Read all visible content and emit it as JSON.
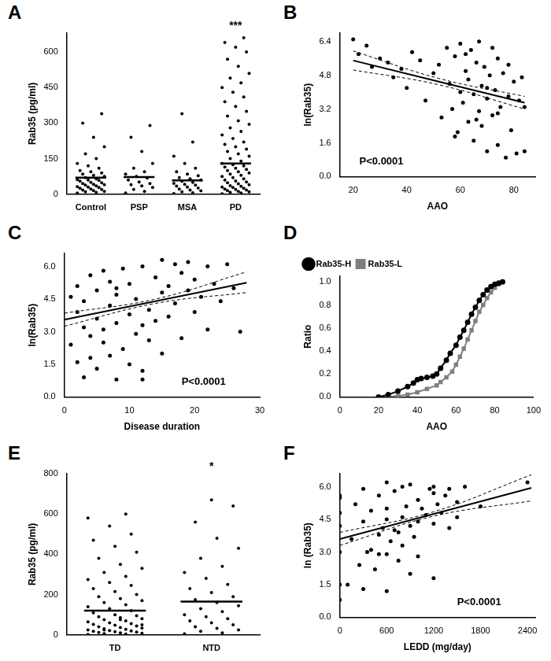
{
  "chart_data": [
    {
      "panel": "A",
      "type": "dot",
      "y_label": "Rab35 (pg/ml)",
      "color": "#000000",
      "grid": false,
      "ylim": [
        0,
        680
      ],
      "yticks": [
        0,
        150,
        300,
        450,
        600
      ],
      "groups": [
        {
          "name": "Control",
          "mean": 70,
          "values": [
            5,
            8,
            10,
            12,
            15,
            18,
            20,
            22,
            25,
            28,
            30,
            32,
            35,
            38,
            40,
            42,
            45,
            48,
            50,
            55,
            58,
            60,
            62,
            65,
            70,
            75,
            80,
            85,
            90,
            95,
            100,
            110,
            120,
            130,
            150,
            170,
            200,
            240,
            300,
            340
          ]
        },
        {
          "name": "PSP",
          "mean": 72,
          "values": [
            5,
            12,
            20,
            28,
            35,
            40,
            45,
            52,
            60,
            68,
            75,
            85,
            95,
            110,
            130,
            180,
            240,
            290
          ]
        },
        {
          "name": "MSA",
          "mean": 58,
          "values": [
            3,
            6,
            10,
            14,
            18,
            22,
            26,
            30,
            34,
            38,
            42,
            46,
            50,
            55,
            60,
            65,
            70,
            78,
            85,
            95,
            110,
            130,
            160,
            220,
            340
          ]
        },
        {
          "name": "PD",
          "mean": 130,
          "annotation": "***",
          "values": [
            2,
            5,
            8,
            10,
            12,
            15,
            18,
            20,
            22,
            25,
            28,
            30,
            33,
            36,
            40,
            44,
            48,
            52,
            56,
            60,
            65,
            70,
            75,
            80,
            85,
            90,
            95,
            100,
            105,
            110,
            115,
            120,
            125,
            130,
            140,
            150,
            160,
            170,
            180,
            190,
            200,
            210,
            220,
            235,
            250,
            265,
            280,
            295,
            310,
            330,
            350,
            370,
            390,
            410,
            430,
            450,
            470,
            490,
            510,
            540,
            570,
            600,
            620,
            640,
            660
          ]
        }
      ]
    },
    {
      "panel": "B",
      "type": "scatter",
      "x_label": "AAO",
      "y_label": "ln(Rab35)",
      "color": "#000000",
      "grid": false,
      "xlim": [
        15,
        88
      ],
      "xticks": [
        20,
        40,
        60,
        80
      ],
      "ylim": [
        0,
        6.8
      ],
      "yticks": [
        {
          "value": 0,
          "label": "0.0"
        },
        1.6,
        3.2,
        4.8,
        6.4
      ],
      "x": [
        20,
        22,
        25,
        27,
        30,
        33,
        35,
        38,
        40,
        42,
        45,
        47,
        50,
        52,
        53,
        55,
        56,
        57,
        58,
        59,
        60,
        60,
        61,
        62,
        63,
        63,
        64,
        65,
        65,
        66,
        67,
        67,
        68,
        68,
        69,
        70,
        70,
        71,
        72,
        72,
        73,
        74,
        74,
        75,
        76,
        77,
        78,
        78,
        79,
        80,
        81,
        82,
        83,
        84,
        58,
        62,
        66,
        70,
        74,
        84
      ],
      "y": [
        6.5,
        5.8,
        6.2,
        5.2,
        5.6,
        5.4,
        4.7,
        5.1,
        4.2,
        5.9,
        5.5,
        3.6,
        4.9,
        5.3,
        2.8,
        6.1,
        4.4,
        3.2,
        5.7,
        2.1,
        4.0,
        6.3,
        3.5,
        5.0,
        2.6,
        4.6,
        6.0,
        3.9,
        1.7,
        5.4,
        3.1,
        6.4,
        4.3,
        2.4,
        5.2,
        3.7,
        1.2,
        4.8,
        6.1,
        2.9,
        4.1,
        5.6,
        1.5,
        3.3,
        4.9,
        0.9,
        3.8,
        5.3,
        2.2,
        4.5,
        1.1,
        3.6,
        4.7,
        3.3,
        1.9,
        5.8,
        2.7,
        4.2,
        3.0,
        1.2
      ],
      "fit": {
        "x": [
          20,
          84
        ],
        "y": [
          5.5,
          3.5
        ]
      },
      "ci_upper": {
        "x": [
          20,
          52,
          84
        ],
        "y": [
          5.95,
          4.65,
          3.8
        ]
      },
      "ci_lower": {
        "x": [
          20,
          52,
          84
        ],
        "y": [
          5.05,
          4.35,
          3.2
        ]
      },
      "annotation": "P<0.0001"
    },
    {
      "panel": "C",
      "type": "scatter",
      "x_label": "Disease duration",
      "y_label": "ln(Rab35)",
      "color": "#000000",
      "grid": false,
      "xlim": [
        0,
        30
      ],
      "xticks": [
        0,
        10,
        20,
        30
      ],
      "ylim": [
        0,
        6.6
      ],
      "yticks": [
        {
          "value": 0,
          "label": "0.0"
        },
        1.5,
        {
          "value": 3,
          "label": "3.0"
        },
        4.5,
        {
          "value": 6,
          "label": "6.0"
        }
      ],
      "x": [
        1,
        1,
        2,
        2,
        2,
        3,
        3,
        3,
        4,
        4,
        4,
        5,
        5,
        5,
        6,
        6,
        6,
        7,
        7,
        7,
        8,
        8,
        8,
        9,
        9,
        10,
        10,
        10,
        11,
        11,
        12,
        12,
        12,
        13,
        13,
        14,
        14,
        15,
        15,
        15,
        16,
        16,
        17,
        17,
        18,
        18,
        19,
        19,
        20,
        20,
        21,
        22,
        22,
        23,
        24,
        25,
        26,
        27,
        12,
        8
      ],
      "y": [
        4.6,
        2.4,
        3.9,
        1.6,
        5.1,
        3.2,
        0.9,
        4.4,
        2.8,
        5.6,
        1.8,
        3.6,
        4.9,
        1.3,
        3.1,
        5.8,
        2.5,
        4.2,
        1.9,
        5.3,
        3.4,
        0.8,
        4.7,
        2.2,
        5.9,
        3.8,
        1.5,
        5.2,
        2.9,
        4.5,
        3.3,
        6.0,
        1.2,
        4.0,
        2.6,
        5.5,
        3.5,
        4.8,
        6.3,
        2.0,
        5.1,
        3.7,
        6.1,
        4.3,
        5.7,
        2.7,
        4.9,
        6.2,
        3.9,
        5.4,
        4.6,
        6.0,
        3.1,
        5.2,
        4.4,
        6.1,
        5.0,
        3.0,
        0.8,
        5.0
      ],
      "fit": {
        "x": [
          0,
          28
        ],
        "y": [
          3.55,
          5.25
        ]
      },
      "ci_upper": {
        "x": [
          0,
          14,
          28
        ],
        "y": [
          3.85,
          4.5,
          5.75
        ]
      },
      "ci_lower": {
        "x": [
          0,
          14,
          28
        ],
        "y": [
          3.25,
          4.3,
          4.8
        ]
      },
      "annotation": "P<0.0001"
    },
    {
      "panel": "D",
      "type": "line",
      "x_label": "AAO",
      "y_label": "Ratio",
      "grid": false,
      "legend": "upper left",
      "xlim": [
        0,
        100
      ],
      "xticks": [
        0,
        20,
        40,
        60,
        80,
        100
      ],
      "ylim": [
        0,
        1.05
      ],
      "yticks": [
        {
          "value": 0,
          "label": "0.0"
        },
        0.2,
        0.4,
        0.6,
        0.8,
        {
          "value": 1,
          "label": "1.0"
        }
      ],
      "series": [
        {
          "name": "Rab35-H",
          "color": "#000000",
          "marker": "circle",
          "x": [
            20,
            25,
            30,
            35,
            38,
            40,
            42,
            45,
            48,
            50,
            52,
            55,
            57,
            60,
            62,
            64,
            66,
            68,
            70,
            72,
            74,
            76,
            78,
            80,
            82,
            84
          ],
          "values": [
            0,
            0.02,
            0.05,
            0.09,
            0.12,
            0.15,
            0.16,
            0.17,
            0.18,
            0.2,
            0.25,
            0.32,
            0.38,
            0.45,
            0.52,
            0.58,
            0.65,
            0.72,
            0.78,
            0.84,
            0.89,
            0.93,
            0.96,
            0.98,
            0.99,
            1.0
          ]
        },
        {
          "name": "Rab35-L",
          "color": "#808080",
          "marker": "square",
          "x": [
            25,
            30,
            35,
            40,
            45,
            50,
            52,
            55,
            58,
            60,
            62,
            64,
            66,
            68,
            70,
            72,
            74,
            76,
            78,
            80,
            82,
            84
          ],
          "values": [
            0,
            0.01,
            0.02,
            0.04,
            0.07,
            0.1,
            0.13,
            0.17,
            0.22,
            0.28,
            0.35,
            0.42,
            0.5,
            0.58,
            0.66,
            0.74,
            0.8,
            0.86,
            0.91,
            0.95,
            0.98,
            1.0
          ]
        }
      ]
    },
    {
      "panel": "E",
      "type": "dot",
      "y_label": "Rab35 (pg/ml)",
      "color": "#000000",
      "grid": false,
      "ylim": [
        0,
        800
      ],
      "yticks": [
        0,
        200,
        400,
        600,
        800
      ],
      "groups": [
        {
          "name": "TD",
          "mean": 120,
          "values": [
            2,
            4,
            6,
            8,
            10,
            12,
            14,
            16,
            18,
            20,
            22,
            25,
            28,
            30,
            33,
            36,
            40,
            44,
            48,
            52,
            56,
            60,
            65,
            70,
            75,
            80,
            85,
            90,
            95,
            100,
            110,
            120,
            130,
            140,
            150,
            160,
            170,
            180,
            190,
            200,
            215,
            230,
            245,
            260,
            275,
            290,
            310,
            330,
            350,
            380,
            410,
            440,
            470,
            500,
            540,
            580,
            600,
            25,
            50,
            75
          ]
        },
        {
          "name": "NTD",
          "mean": 165,
          "annotation": "*",
          "values": [
            5,
            10,
            18,
            25,
            32,
            40,
            50,
            60,
            70,
            80,
            90,
            100,
            115,
            130,
            145,
            160,
            175,
            190,
            210,
            230,
            250,
            280,
            310,
            340,
            380,
            430,
            480,
            560,
            640,
            670
          ]
        }
      ]
    },
    {
      "panel": "F",
      "type": "scatter",
      "x_label": "LEDD (mg/day)",
      "y_label": "ln (Rab35)",
      "color": "#000000",
      "grid": false,
      "xlim": [
        0,
        2500
      ],
      "xticks": [
        0,
        600,
        1200,
        1800,
        2400
      ],
      "ylim": [
        0,
        6.6
      ],
      "yticks": [
        {
          "value": 0,
          "label": "0.0"
        },
        1.5,
        {
          "value": 3,
          "label": "3.0"
        },
        4.5,
        {
          "value": 6,
          "label": "6.0"
        }
      ],
      "x": [
        0,
        0,
        0,
        0,
        0,
        0,
        150,
        200,
        250,
        300,
        300,
        300,
        400,
        400,
        450,
        500,
        500,
        550,
        600,
        600,
        600,
        600,
        650,
        700,
        700,
        750,
        800,
        800,
        800,
        850,
        900,
        900,
        950,
        1000,
        1000,
        1000,
        1050,
        1100,
        1150,
        1200,
        1200,
        1200,
        1250,
        1300,
        1350,
        1400,
        1400,
        1500,
        1500,
        1600,
        1800,
        2400,
        100,
        350,
        600,
        900,
        1200,
        0,
        500,
        750
      ],
      "y": [
        4.8,
        3.0,
        1.5,
        5.5,
        0.8,
        4.2,
        3.6,
        5.2,
        2.4,
        4.4,
        1.3,
        5.9,
        3.1,
        4.9,
        2.2,
        5.6,
        3.8,
        4.1,
        6.2,
        4.5,
        2.9,
        5.0,
        3.5,
        5.8,
        4.0,
        2.6,
        6.0,
        4.6,
        3.3,
        5.1,
        4.2,
        6.1,
        3.7,
        5.4,
        4.4,
        2.8,
        5.0,
        4.7,
        5.9,
        6.0,
        4.3,
        1.8,
        5.2,
        4.8,
        5.6,
        4.1,
        5.9,
        5.3,
        4.6,
        6.0,
        5.1,
        6.2,
        1.5,
        3.0,
        1.2,
        2.0,
        5.7,
        5.6,
        2.9,
        3.9
      ],
      "fit": {
        "x": [
          0,
          2450
        ],
        "y": [
          3.6,
          5.95
        ]
      },
      "ci_upper": {
        "x": [
          0,
          1200,
          2450
        ],
        "y": [
          3.9,
          4.85,
          6.55
        ]
      },
      "ci_lower": {
        "x": [
          0,
          1200,
          2450
        ],
        "y": [
          3.3,
          4.65,
          5.35
        ]
      },
      "annotation": "P<0.0001"
    }
  ]
}
